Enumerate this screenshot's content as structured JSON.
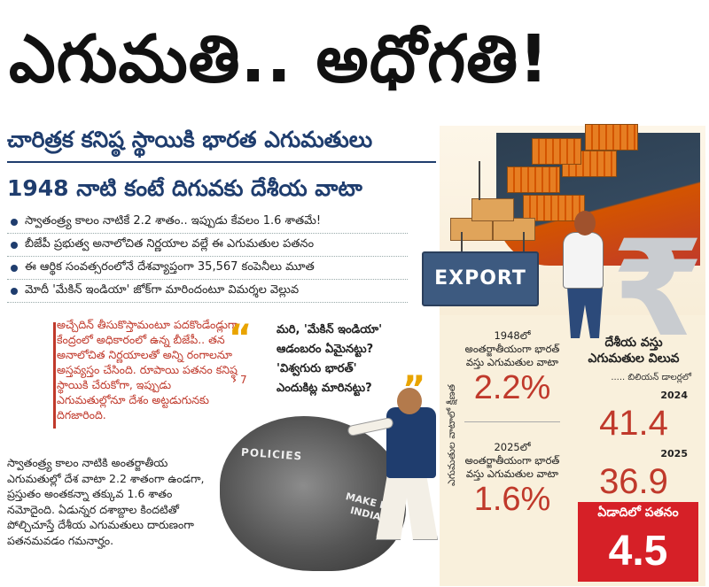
{
  "headline": "ఎగుమతి.. అధోగతి!",
  "subheadings": {
    "primary": "చారిత్రక కనిష్ఠ స్థాయికి భారత ఎగుమతులు",
    "secondary": "1948 నాటి కంటే దిగువకు దేశీయ వాటా"
  },
  "bullets": [
    "స్వాతంత్ర్య కాలం నాటికే 2.2 శాతం.. ఇప్పుడు కేవలం 1.6 శాతమే!",
    "బీజేపీ ప్రభుత్వ అనాలోచిత నిర్ణయాల వల్లే ఈ ఎగుమతుల పతనం",
    "ఈ ఆర్థిక సంవత్సరంలోనే దేశవ్యాప్తంగా 35,567 కంపెనీలు మూత",
    "మోదీ 'మేకిన్ ఇండియా' జోక్‌గా మారిందంటూ విమర్శల వెల్లువ"
  ],
  "red_paragraph": "అచ్చేదిన్ తీసుకొస్తామంటూ పదకొండేండ్లుగా కేంద్రంలో అధికారంలో ఉన్న బీజేపీ.. తన అనాలోచిత నిర్ణయాలతో అన్ని రంగాలనూ అస్తవ్యస్తం చేసింది. రూపాయి పతనం కనిష్ఠ స్థాయికి చేరుకోగా, ఇప్పుడు ఎగుమతుల్లోనూ దేశం అట్టడుగునకు దిగజారింది.",
  "page_ref": "7",
  "black_paragraph": "స్వాతంత్ర్య కాలం నాటికి అంతర్జాతీయ ఎగుమతుల్లో దేశ వాటా 2.2 శాతంగా ఉండగా, ప్రస్తుతం అంతకన్నా తక్కువ 1.6 శాతం నమోదైంది. ఏడున్నర దశాబ్దాల కిందటితో పోల్చిచూస్తే దేశీయ ఎగుమతులు దారుణంగా పతనమవడం గమనార్హం.",
  "quote": {
    "line1": "మరి, 'మేకిన్ ఇండియా'",
    "line2": "ఆడంబరం ఏమైనట్టు?",
    "line3": "'విశ్వగురు భారత్'",
    "line4": "ఎందుకిట్ల మారినట్టు?"
  },
  "illustration": {
    "export_label": "EXPORT",
    "policies_label": "POLICIES",
    "make_in_india_label": "MAKE IN INDIA",
    "rupee_symbol": "₹",
    "quote_icon": "quote-icon"
  },
  "share_panel": {
    "vertical_label": "ఎగుమతుల వాటాలో క్షీణత",
    "stat_1948": {
      "caption": "1948లో అంతర్జాతీయంగా భారత్ వస్తు ఎగుమతుల వాటా",
      "value": "2.2%"
    },
    "stat_2025": {
      "caption": "2025లో అంతర్జాతీయంగా భారత్ వస్తు ఎగుమతుల వాటా",
      "value": "1.6%"
    }
  },
  "value_panel": {
    "title": "దేశీయ వస్తు ఎగుమతుల విలువ",
    "unit": "..... బిలియన్ డాలర్లలో",
    "rows": [
      {
        "year": "2024",
        "value": "41.4"
      },
      {
        "year": "2025",
        "value": "36.9"
      }
    ],
    "fall_label": "ఏడాదిలో పతనం",
    "fall_value": "4.5"
  },
  "colors": {
    "accent_red": "#d62027",
    "heading_blue": "#1f3d6e",
    "quote_yellow": "#e9a400"
  }
}
